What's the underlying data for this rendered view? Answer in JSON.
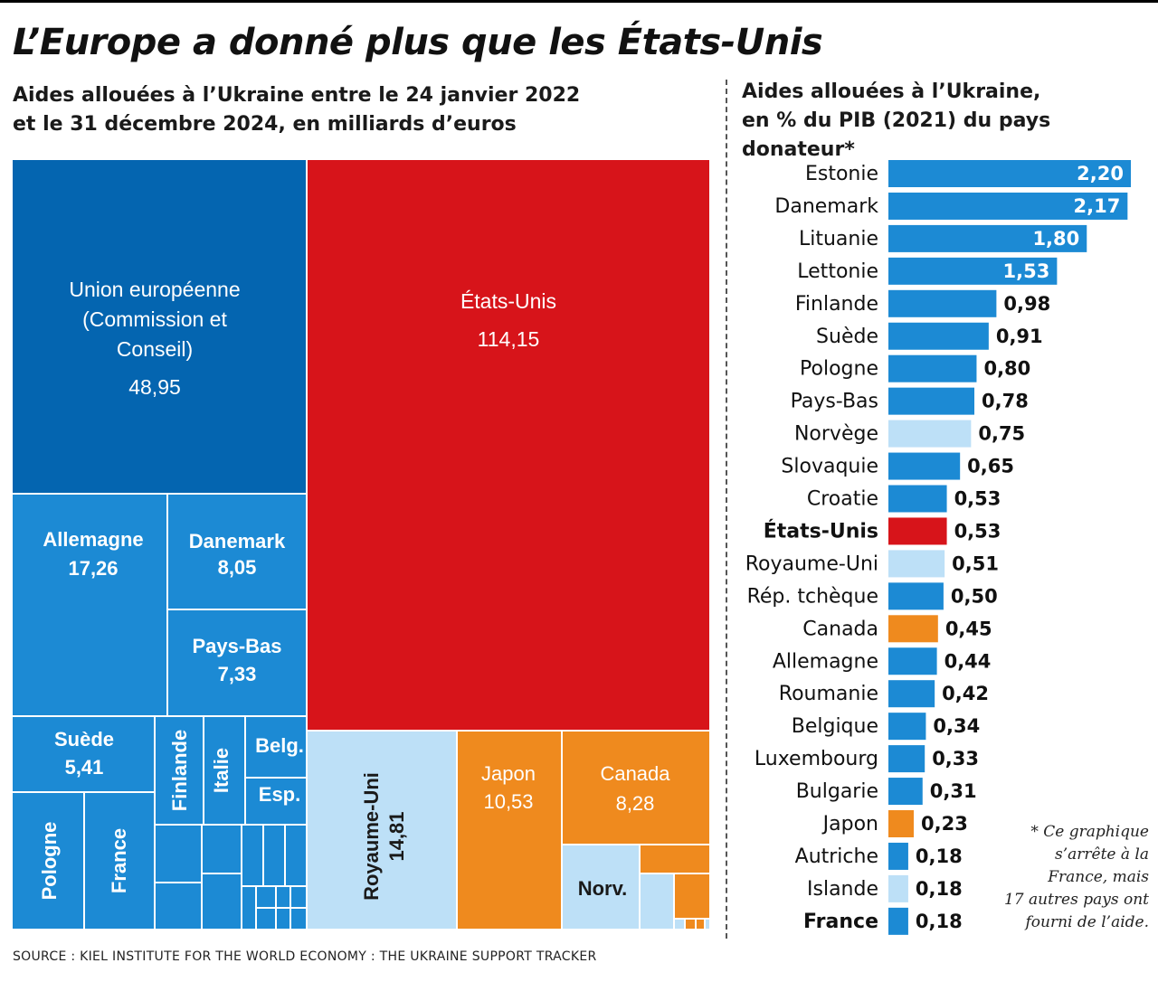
{
  "title": "L’Europe a donné plus que les États-Unis",
  "subtitle_left": "Aides allouées à l’Ukraine entre le 24 janvier 2022\net le 31 décembre 2024, en milliards d’euros",
  "subtitle_right": "Aides allouées à l’Ukraine,\nen % du PIB (2021) du pays donateur*",
  "footnote": "* Ce graphique\ns’arrête à la\nFrance, mais\n17 autres pays ont\nfourni de l’aide.",
  "source": "SOURCE : KIEL INSTITUTE FOR THE WORLD ECONOMY : THE UKRAINE SUPPORT TRACKER",
  "colors": {
    "eu_institutions": "#0465b0",
    "europe": "#1c8ad4",
    "usa": "#d7141a",
    "other_europe": "#bde0f7",
    "asia_america": "#ef8a1e"
  },
  "chart_data": [
    {
      "type": "treemap",
      "title": "Aides allouées à l’Ukraine entre le 24 janvier 2022 et le 31 décembre 2024, en milliards d’euros",
      "unit": "milliards d’euros",
      "items": [
        {
          "name": "Union européenne (Commission et Conseil)",
          "value": 48.95,
          "label": "48,95",
          "group": "eu_institutions"
        },
        {
          "name": "États-Unis",
          "value": 114.15,
          "label": "114,15",
          "group": "usa"
        },
        {
          "name": "Allemagne",
          "value": 17.26,
          "label": "17,26",
          "group": "europe"
        },
        {
          "name": "Danemark",
          "value": 8.05,
          "label": "8,05",
          "group": "europe"
        },
        {
          "name": "Pays-Bas",
          "value": 7.33,
          "label": "7,33",
          "group": "europe"
        },
        {
          "name": "Suède",
          "value": 5.41,
          "label": "5,41",
          "group": "europe"
        },
        {
          "name": "Royaume-Uni",
          "value": 14.81,
          "label": "14,81",
          "group": "other_europe"
        },
        {
          "name": "Japon",
          "value": 10.53,
          "label": "10,53",
          "group": "asia_america"
        },
        {
          "name": "Canada",
          "value": 8.28,
          "label": "8,28",
          "group": "asia_america"
        },
        {
          "name": "Pologne",
          "group": "europe"
        },
        {
          "name": "France",
          "group": "europe"
        },
        {
          "name": "Finlande",
          "group": "europe"
        },
        {
          "name": "Italie",
          "group": "europe"
        },
        {
          "name": "Belg.",
          "group": "europe"
        },
        {
          "name": "Esp.",
          "group": "europe"
        },
        {
          "name": "Norv.",
          "group": "other_europe"
        }
      ]
    },
    {
      "type": "bar",
      "orientation": "horizontal",
      "title": "Aides allouées à l’Ukraine, en % du PIB (2021) du pays donateur*",
      "unit": "% du PIB",
      "xlim": [
        0,
        2.2
      ],
      "grid": false,
      "bars": [
        {
          "country": "Estonie",
          "value": 2.2,
          "label": "2,20",
          "group": "europe",
          "bold": false
        },
        {
          "country": "Danemark",
          "value": 2.17,
          "label": "2,17",
          "group": "europe",
          "bold": false
        },
        {
          "country": "Lituanie",
          "value": 1.8,
          "label": "1,80",
          "group": "europe",
          "bold": false
        },
        {
          "country": "Lettonie",
          "value": 1.53,
          "label": "1,53",
          "group": "europe",
          "bold": false
        },
        {
          "country": "Finlande",
          "value": 0.98,
          "label": "0,98",
          "group": "europe",
          "bold": false
        },
        {
          "country": "Suède",
          "value": 0.91,
          "label": "0,91",
          "group": "europe",
          "bold": false
        },
        {
          "country": "Pologne",
          "value": 0.8,
          "label": "0,80",
          "group": "europe",
          "bold": false
        },
        {
          "country": "Pays-Bas",
          "value": 0.78,
          "label": "0,78",
          "group": "europe",
          "bold": false
        },
        {
          "country": "Norvège",
          "value": 0.75,
          "label": "0,75",
          "group": "other_europe",
          "bold": false
        },
        {
          "country": "Slovaquie",
          "value": 0.65,
          "label": "0,65",
          "group": "europe",
          "bold": false
        },
        {
          "country": "Croatie",
          "value": 0.53,
          "label": "0,53",
          "group": "europe",
          "bold": false
        },
        {
          "country": "États-Unis",
          "value": 0.53,
          "label": "0,53",
          "group": "usa",
          "bold": true
        },
        {
          "country": "Royaume-Uni",
          "value": 0.51,
          "label": "0,51",
          "group": "other_europe",
          "bold": false
        },
        {
          "country": "Rép. tchèque",
          "value": 0.5,
          "label": "0,50",
          "group": "europe",
          "bold": false
        },
        {
          "country": "Canada",
          "value": 0.45,
          "label": "0,45",
          "group": "asia_america",
          "bold": false
        },
        {
          "country": "Allemagne",
          "value": 0.44,
          "label": "0,44",
          "group": "europe",
          "bold": false
        },
        {
          "country": "Roumanie",
          "value": 0.42,
          "label": "0,42",
          "group": "europe",
          "bold": false
        },
        {
          "country": "Belgique",
          "value": 0.34,
          "label": "0,34",
          "group": "europe",
          "bold": false
        },
        {
          "country": "Luxembourg",
          "value": 0.33,
          "label": "0,33",
          "group": "europe",
          "bold": false
        },
        {
          "country": "Bulgarie",
          "value": 0.31,
          "label": "0,31",
          "group": "europe",
          "bold": false
        },
        {
          "country": "Japon",
          "value": 0.23,
          "label": "0,23",
          "group": "asia_america",
          "bold": false
        },
        {
          "country": "Autriche",
          "value": 0.18,
          "label": "0,18",
          "group": "europe",
          "bold": false
        },
        {
          "country": "Islande",
          "value": 0.18,
          "label": "0,18",
          "group": "other_europe",
          "bold": false
        },
        {
          "country": "France",
          "value": 0.18,
          "label": "0,18",
          "group": "europe",
          "bold": true
        }
      ]
    }
  ]
}
